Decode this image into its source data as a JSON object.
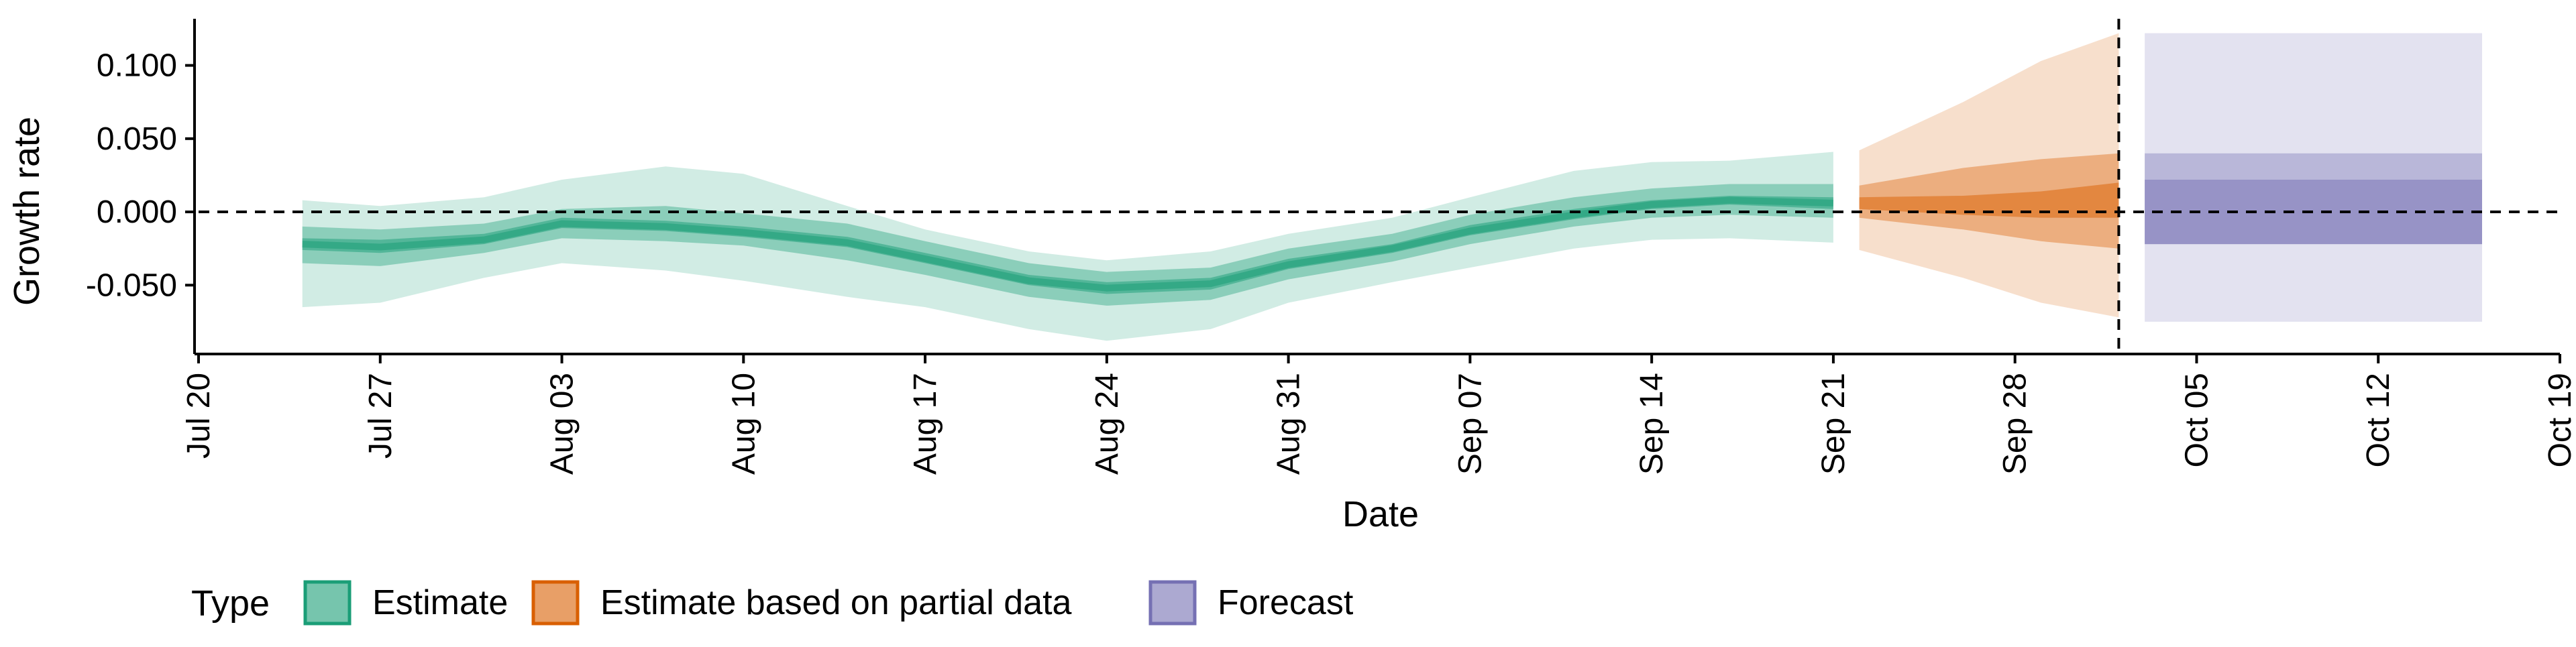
{
  "chart_data": {
    "type": "area",
    "ylabel": "Growth rate",
    "xlabel": "Date",
    "x_ticks": [
      "Jul 20",
      "Jul 27",
      "Aug 03",
      "Aug 10",
      "Aug 17",
      "Aug 24",
      "Aug 31",
      "Sep 07",
      "Sep 14",
      "Sep 21",
      "Sep 28",
      "Oct 05",
      "Oct 12",
      "Oct 19"
    ],
    "y_ticks": [
      "0.100",
      "0.050",
      "0.000",
      "-0.050"
    ],
    "y_tick_values": [
      0.1,
      0.05,
      0.0,
      -0.05
    ],
    "xlim": [
      "2020-07-20",
      "2020-10-19"
    ],
    "ylim": [
      -0.097,
      0.13
    ],
    "grid": false,
    "reference_lines": {
      "horizontal_y": 0.0,
      "vertical_date": "2020-10-02"
    },
    "legend": {
      "title": "Type",
      "position": "bottom-left",
      "entries": [
        "Estimate",
        "Estimate based on partial data",
        "Forecast"
      ]
    },
    "colors": {
      "Estimate": "#1b9e77",
      "Estimate based on partial data": "#d95f02",
      "Forecast": "#7570b3"
    },
    "band_levels": [
      "90% interval",
      "50% interval",
      "20% interval"
    ],
    "series": [
      {
        "type": "Estimate",
        "points": [
          {
            "date": "2020-07-24",
            "lo90": -0.065,
            "lo50": -0.035,
            "lo20": -0.026,
            "median": -0.022,
            "hi20": -0.018,
            "hi50": -0.01,
            "hi90": 0.008
          },
          {
            "date": "2020-07-27",
            "lo90": -0.062,
            "lo50": -0.037,
            "lo20": -0.028,
            "median": -0.024,
            "hi20": -0.019,
            "hi50": -0.012,
            "hi90": 0.004
          },
          {
            "date": "2020-07-31",
            "lo90": -0.045,
            "lo50": -0.028,
            "lo20": -0.022,
            "median": -0.019,
            "hi20": -0.015,
            "hi50": -0.008,
            "hi90": 0.01
          },
          {
            "date": "2020-08-03",
            "lo90": -0.035,
            "lo50": -0.018,
            "lo20": -0.011,
            "median": -0.008,
            "hi20": -0.004,
            "hi50": 0.002,
            "hi90": 0.022
          },
          {
            "date": "2020-08-07",
            "lo90": -0.04,
            "lo50": -0.02,
            "lo20": -0.013,
            "median": -0.01,
            "hi20": -0.006,
            "hi50": 0.004,
            "hi90": 0.031
          },
          {
            "date": "2020-08-10",
            "lo90": -0.047,
            "lo50": -0.023,
            "lo20": -0.017,
            "median": -0.014,
            "hi20": -0.01,
            "hi50": -0.001,
            "hi90": 0.026
          },
          {
            "date": "2020-08-14",
            "lo90": -0.058,
            "lo50": -0.033,
            "lo20": -0.024,
            "median": -0.021,
            "hi20": -0.017,
            "hi50": -0.008,
            "hi90": 0.004
          },
          {
            "date": "2020-08-17",
            "lo90": -0.065,
            "lo50": -0.043,
            "lo20": -0.035,
            "median": -0.032,
            "hi20": -0.028,
            "hi50": -0.02,
            "hi90": -0.012
          },
          {
            "date": "2020-08-21",
            "lo90": -0.08,
            "lo50": -0.058,
            "lo20": -0.05,
            "median": -0.047,
            "hi20": -0.043,
            "hi50": -0.035,
            "hi90": -0.027
          },
          {
            "date": "2020-08-24",
            "lo90": -0.088,
            "lo50": -0.064,
            "lo20": -0.056,
            "median": -0.052,
            "hi20": -0.048,
            "hi50": -0.041,
            "hi90": -0.033
          },
          {
            "date": "2020-08-28",
            "lo90": -0.08,
            "lo50": -0.06,
            "lo20": -0.053,
            "median": -0.049,
            "hi20": -0.045,
            "hi50": -0.038,
            "hi90": -0.027
          },
          {
            "date": "2020-08-31",
            "lo90": -0.062,
            "lo50": -0.046,
            "lo20": -0.039,
            "median": -0.036,
            "hi20": -0.032,
            "hi50": -0.025,
            "hi90": -0.015
          },
          {
            "date": "2020-09-04",
            "lo90": -0.048,
            "lo50": -0.034,
            "lo20": -0.028,
            "median": -0.025,
            "hi20": -0.022,
            "hi50": -0.015,
            "hi90": -0.004
          },
          {
            "date": "2020-09-07",
            "lo90": -0.038,
            "lo50": -0.022,
            "lo20": -0.016,
            "median": -0.013,
            "hi20": -0.009,
            "hi50": -0.002,
            "hi90": 0.01
          },
          {
            "date": "2020-09-11",
            "lo90": -0.025,
            "lo50": -0.01,
            "lo20": -0.005,
            "median": -0.002,
            "hi20": 0.002,
            "hi50": 0.01,
            "hi90": 0.028
          },
          {
            "date": "2020-09-14",
            "lo90": -0.019,
            "lo50": -0.004,
            "lo20": 0.002,
            "median": 0.005,
            "hi20": 0.008,
            "hi50": 0.016,
            "hi90": 0.034
          },
          {
            "date": "2020-09-17",
            "lo90": -0.018,
            "lo50": -0.002,
            "lo20": 0.005,
            "median": 0.008,
            "hi20": 0.011,
            "hi50": 0.019,
            "hi90": 0.035
          },
          {
            "date": "2020-09-21",
            "lo90": -0.021,
            "lo50": -0.004,
            "lo20": 0.002,
            "median": 0.006,
            "hi20": 0.01,
            "hi50": 0.019,
            "hi90": 0.041
          }
        ]
      },
      {
        "type": "Estimate based on partial data",
        "points": [
          {
            "date": "2020-09-22",
            "lo90": -0.026,
            "lo50": -0.004,
            "lo20": 0.002,
            "median": 0.006,
            "hi20": 0.01,
            "hi50": 0.018,
            "hi90": 0.042
          },
          {
            "date": "2020-09-26",
            "lo90": -0.045,
            "lo50": -0.012,
            "lo20": -0.002,
            "median": 0.004,
            "hi20": 0.011,
            "hi50": 0.03,
            "hi90": 0.075
          },
          {
            "date": "2020-09-29",
            "lo90": -0.062,
            "lo50": -0.02,
            "lo20": -0.004,
            "median": 0.005,
            "hi20": 0.014,
            "hi50": 0.036,
            "hi90": 0.103
          },
          {
            "date": "2020-10-02",
            "lo90": -0.072,
            "lo50": -0.025,
            "lo20": -0.004,
            "median": 0.006,
            "hi20": 0.02,
            "hi50": 0.04,
            "hi90": 0.122
          }
        ]
      },
      {
        "type": "Forecast",
        "points": [
          {
            "date": "2020-10-03",
            "lo90": -0.075,
            "lo50": -0.022,
            "lo20": -0.022,
            "median": 0.0,
            "hi20": 0.022,
            "hi50": 0.04,
            "hi90": 0.122
          },
          {
            "date": "2020-10-16",
            "lo90": -0.075,
            "lo50": -0.022,
            "lo20": -0.022,
            "median": 0.0,
            "hi20": 0.022,
            "hi50": 0.04,
            "hi90": 0.122
          }
        ]
      }
    ]
  }
}
